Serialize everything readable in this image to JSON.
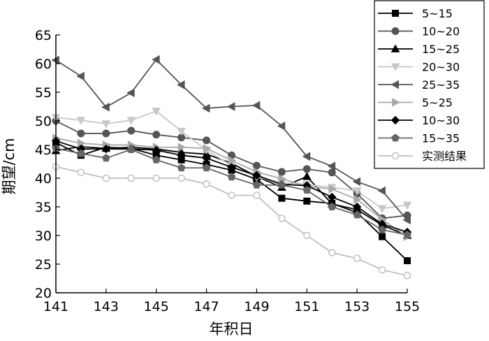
{
  "chart_data": {
    "type": "line",
    "title": "",
    "xlabel": "年积日",
    "ylabel": "期望/cm",
    "xlim": [
      141,
      155
    ],
    "ylim": [
      20,
      65
    ],
    "x_ticks": [
      141,
      143,
      145,
      147,
      149,
      151,
      153,
      155
    ],
    "y_ticks": [
      20,
      25,
      30,
      35,
      40,
      45,
      50,
      55,
      60,
      65
    ],
    "legend_position": "top-right",
    "grid": false,
    "x": [
      141,
      142,
      143,
      144,
      145,
      146,
      147,
      148,
      149,
      150,
      151,
      152,
      153,
      154,
      155
    ],
    "series": [
      {
        "name": "5~15",
        "color": "#000000",
        "marker": "square",
        "values": [
          46.2,
          44.0,
          45.4,
          45.2,
          44.0,
          43.2,
          42.4,
          41.4,
          39.8,
          36.5,
          36.0,
          35.6,
          34.0,
          29.8,
          25.6
        ]
      },
      {
        "name": "10~20",
        "color": "#555555",
        "marker": "circle",
        "values": [
          50.0,
          47.8,
          47.8,
          48.3,
          47.6,
          47.1,
          46.6,
          44.0,
          42.2,
          41.1,
          41.6,
          41.0,
          37.3,
          33.0,
          33.5
        ]
      },
      {
        "name": "15~25",
        "color": "#000000",
        "marker": "triangle-up",
        "values": [
          44.8,
          45.5,
          45.2,
          45.4,
          45.1,
          44.5,
          44.2,
          42.6,
          40.3,
          38.4,
          40.3,
          35.5,
          34.5,
          31.8,
          30.0
        ]
      },
      {
        "name": "20~30",
        "color": "#c8c8c8",
        "marker": "triangle-down",
        "values": [
          50.6,
          50.1,
          49.5,
          50.1,
          51.7,
          48.2,
          44.9,
          42.2,
          40.2,
          39.2,
          38.9,
          38.4,
          37.8,
          34.7,
          35.3
        ]
      },
      {
        "name": "25~35",
        "color": "#555555",
        "marker": "triangle-left",
        "values": [
          60.6,
          57.8,
          52.4,
          54.9,
          60.7,
          56.3,
          52.2,
          52.5,
          52.7,
          49.1,
          43.8,
          42.1,
          39.4,
          37.8,
          32.7
        ]
      },
      {
        "name": "5~25",
        "color": "#a8a8a8",
        "marker": "triangle-right",
        "values": [
          47.0,
          46.1,
          45.8,
          45.8,
          45.4,
          45.4,
          45.2,
          43.1,
          41.1,
          39.9,
          38.6,
          38.1,
          36.3,
          32.8,
          29.8
        ]
      },
      {
        "name": "10~30",
        "color": "#000000",
        "marker": "diamond",
        "values": [
          46.5,
          45.1,
          45.1,
          45.1,
          44.9,
          44.0,
          43.5,
          41.9,
          40.5,
          38.9,
          38.7,
          36.7,
          35.0,
          32.0,
          30.6
        ]
      },
      {
        "name": "15~35",
        "color": "#666666",
        "marker": "pentagon",
        "values": [
          45.2,
          44.3,
          43.5,
          45.0,
          43.2,
          41.8,
          41.8,
          40.2,
          38.8,
          38.8,
          37.9,
          35.0,
          33.6,
          31.0,
          30.1
        ]
      },
      {
        "name": "实测结果",
        "color": "#c0c0c0",
        "marker": "open-circle",
        "values": [
          42.0,
          41.0,
          40.0,
          40.0,
          40.0,
          40.0,
          39.0,
          37.0,
          37.0,
          33.0,
          30.0,
          27.0,
          26.0,
          24.0,
          23.0
        ]
      }
    ]
  }
}
